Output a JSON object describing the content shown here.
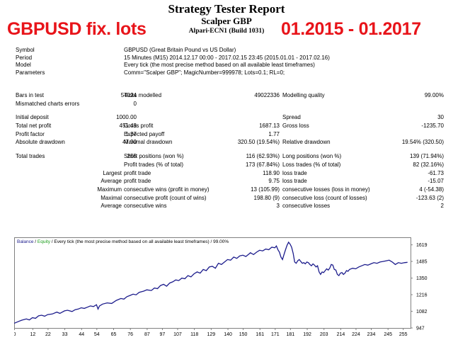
{
  "report": {
    "title": "Strategy Tester Report",
    "ea_name": "Scalper GBP",
    "server": "Alpari-ECN1 (Build 1031)"
  },
  "overlay": {
    "left_text": "GBPUSD fix. lots",
    "right_text": "01.2015 - 01.2017",
    "color": "#e8141a"
  },
  "info": [
    {
      "label": "Symbol",
      "value": "GBPUSD (Great Britain Pound vs US Dollar)"
    },
    {
      "label": "Period",
      "value": "15 Minutes (M15) 2014.12.17 00:00 - 2017.02.15 23:45 (2015.01.01 - 2017.02.16)"
    },
    {
      "label": "Model",
      "value": "Every tick (the most precise method based on all available least timeframes)"
    },
    {
      "label": "Parameters",
      "value": "Comm=\"Scalper GBP\"; MagicNumber=999978; Lots=0.1; RL=0;"
    }
  ],
  "stats": {
    "bars_in_test_label": "Bars in test",
    "bars_in_test": "54024",
    "ticks_modelled_label": "Ticks modelled",
    "ticks_modelled": "49022336",
    "modelling_quality_label": "Modelling quality",
    "modelling_quality": "99.00%",
    "mismatched_label": "Mismatched charts errors",
    "mismatched": "0",
    "initial_deposit_label": "Initial deposit",
    "initial_deposit": "1000.00",
    "spread_label": "Spread",
    "spread": "30",
    "total_net_profit_label": "Total net profit",
    "total_net_profit": "451.43",
    "gross_profit_label": "Gross profit",
    "gross_profit": "1687.13",
    "gross_loss_label": "Gross loss",
    "gross_loss": "-1235.70",
    "profit_factor_label": "Profit factor",
    "profit_factor": "1.37",
    "expected_payoff_label": "Expected payoff",
    "expected_payoff": "1.77",
    "abs_drawdown_label": "Absolute drawdown",
    "abs_drawdown": "47.90",
    "max_drawdown_label": "Maximal drawdown",
    "max_drawdown": "320.50 (19.54%)",
    "rel_drawdown_label": "Relative drawdown",
    "rel_drawdown": "19.54% (320.50)",
    "total_trades_label": "Total trades",
    "total_trades": "255",
    "short_label": "Short positions (won %)",
    "short": "116 (62.93%)",
    "long_label": "Long positions (won %)",
    "long": "139 (71.94%)",
    "profit_trades_label": "Profit trades (% of total)",
    "profit_trades": "173 (67.84%)",
    "loss_trades_label": "Loss trades (% of total)",
    "loss_trades": "82 (32.16%)",
    "largest": "Largest",
    "average": "Average",
    "maximum": "Maximum",
    "maximal": "Maximal",
    "largest_profit_label": "profit trade",
    "largest_profit": "118.90",
    "largest_loss_label": "loss trade",
    "largest_loss": "-61.73",
    "average_profit_label": "profit trade",
    "average_profit": "9.75",
    "average_loss_label": "loss trade",
    "average_loss": "-15.07",
    "max_cons_wins_label": "consecutive wins (profit in money)",
    "max_cons_wins": "13 (105.99)",
    "max_cons_losses_label": "consecutive losses (loss in money)",
    "max_cons_losses": "4 (-54.38)",
    "maximal_cons_profit_label": "consecutive profit (count of wins)",
    "maximal_cons_profit": "198.80 (9)",
    "maximal_cons_loss_label": "consecutive loss (count of losses)",
    "maximal_cons_loss": "-123.63 (2)",
    "avg_cons_wins_label": "consecutive wins",
    "avg_cons_wins": "3",
    "avg_cons_losses_label": "consecutive losses",
    "avg_cons_losses": "2"
  },
  "chart_data": {
    "type": "line",
    "legend": {
      "balance": "Balance",
      "sep": " / ",
      "equity": "Equity",
      "rest": " / Every tick (the most precise method based on all available least timeframes) / 99.00%"
    },
    "y_ticks": [
      "1619",
      "1485",
      "1350",
      "1216",
      "1082",
      "947"
    ],
    "ylim": [
      947,
      1680
    ],
    "x_ticks": [
      "0",
      "12",
      "22",
      "33",
      "44",
      "54",
      "65",
      "76",
      "87",
      "97",
      "107",
      "118",
      "129",
      "140",
      "150",
      "161",
      "171",
      "181",
      "192",
      "203",
      "214",
      "224",
      "234",
      "245",
      "255"
    ],
    "xlim": [
      0,
      260
    ],
    "series": [
      {
        "name": "Balance",
        "color": "#1c1c8c",
        "x": [
          0,
          3,
          5,
          8,
          10,
          12,
          14,
          16,
          18,
          20,
          22,
          25,
          28,
          30,
          33,
          35,
          38,
          40,
          42,
          44,
          46,
          48,
          50,
          52,
          54,
          55,
          56,
          58,
          61,
          64,
          67,
          70,
          72,
          74,
          76,
          78,
          80,
          82,
          85,
          87,
          90,
          92,
          94,
          96,
          98,
          100,
          102,
          104,
          106,
          108,
          110,
          112,
          114,
          116,
          118,
          120,
          122,
          124,
          126,
          128,
          130,
          132,
          134,
          136,
          138,
          140,
          142,
          144,
          146,
          148,
          150,
          152,
          154,
          155,
          157,
          159,
          161,
          163,
          165,
          167,
          169,
          171,
          172,
          173,
          174,
          175,
          176,
          177,
          178,
          179,
          180,
          181,
          182,
          183,
          184,
          185,
          186,
          187,
          188,
          189,
          190,
          191,
          192,
          193,
          194,
          195,
          196,
          197,
          198,
          199,
          200,
          201,
          202,
          203,
          204,
          205,
          206,
          207,
          208,
          209,
          210,
          211,
          212,
          213,
          214,
          215,
          216,
          217,
          218,
          219,
          220,
          222,
          224,
          226,
          228,
          230,
          232,
          234,
          236,
          238,
          240,
          242,
          244,
          246,
          248,
          250,
          252,
          254,
          256,
          258
        ],
        "y": [
          985,
          1000,
          1010,
          1020,
          1012,
          1030,
          1025,
          1045,
          1050,
          1042,
          1055,
          1060,
          1075,
          1065,
          1085,
          1090,
          1080,
          1095,
          1100,
          1110,
          1105,
          1115,
          1125,
          1120,
          1135,
          1100,
          1125,
          1140,
          1150,
          1145,
          1170,
          1185,
          1180,
          1200,
          1210,
          1220,
          1215,
          1235,
          1245,
          1255,
          1250,
          1270,
          1265,
          1290,
          1300,
          1285,
          1310,
          1320,
          1335,
          1330,
          1350,
          1345,
          1370,
          1360,
          1385,
          1400,
          1390,
          1420,
          1410,
          1440,
          1445,
          1430,
          1470,
          1460,
          1480,
          1500,
          1495,
          1520,
          1510,
          1530,
          1535,
          1525,
          1545,
          1555,
          1540,
          1560,
          1575,
          1570,
          1585,
          1580,
          1600,
          1595,
          1610,
          1580,
          1560,
          1520,
          1500,
          1540,
          1580,
          1615,
          1640,
          1625,
          1600,
          1550,
          1480,
          1470,
          1490,
          1500,
          1485,
          1470,
          1475,
          1465,
          1480,
          1475,
          1460,
          1450,
          1465,
          1455,
          1440,
          1450,
          1400,
          1380,
          1400,
          1395,
          1410,
          1425,
          1415,
          1430,
          1460,
          1455,
          1420,
          1415,
          1380,
          1370,
          1390,
          1395,
          1380,
          1390,
          1410,
          1405,
          1420,
          1430,
          1425,
          1440,
          1450,
          1460,
          1455,
          1465,
          1475,
          1470,
          1480,
          1485,
          1490,
          1495,
          1480,
          1460,
          1475,
          1470,
          1475,
          1478
        ]
      }
    ],
    "fill": "#ffffff"
  }
}
